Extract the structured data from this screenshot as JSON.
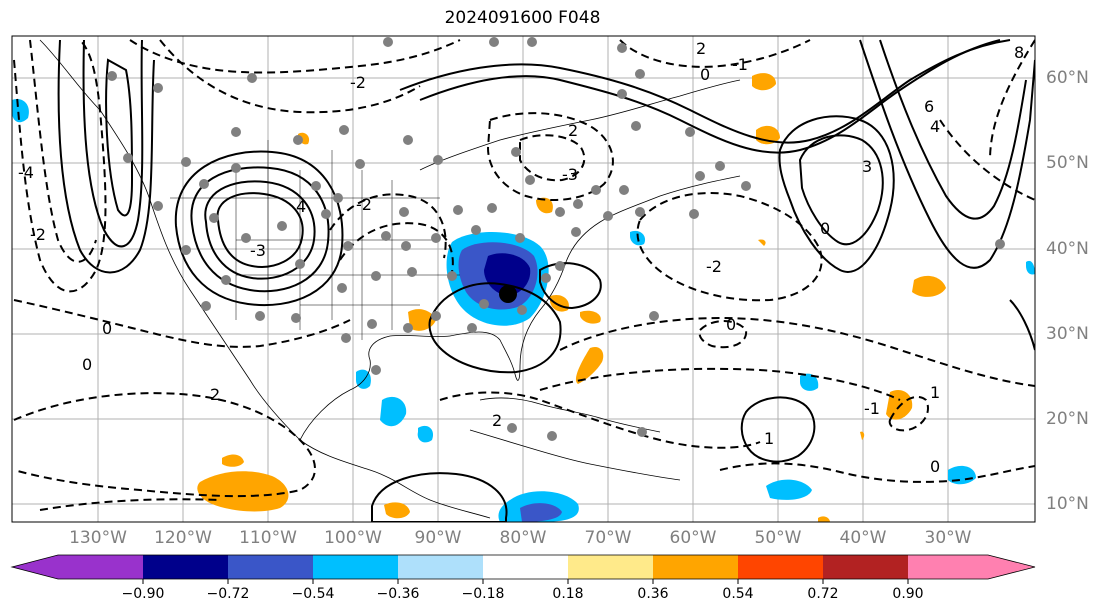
{
  "title": "2024091600 F048",
  "latitude_labels": [
    "60°N",
    "50°N",
    "40°N",
    "30°N",
    "20°N",
    "10°N"
  ],
  "longitude_labels": [
    "130°W",
    "120°W",
    "110°W",
    "100°W",
    "90°W",
    "80°W",
    "70°W",
    "60°W",
    "50°W",
    "40°W",
    "30°W"
  ],
  "contour_labels": [
    "2",
    "-1",
    "0",
    "8",
    "6",
    "4",
    "3",
    "-2",
    "-3",
    "-4",
    "4",
    "-2",
    "-3",
    "2",
    "0",
    "-2",
    "0",
    "1",
    "0",
    "1",
    "-1",
    "0",
    "2",
    "-2",
    "0",
    "2"
  ],
  "colorbar": {
    "ticks": [
      "−0.90",
      "−0.72",
      "−0.54",
      "−0.36",
      "−0.18",
      "0.18",
      "0.36",
      "0.54",
      "0.72",
      "0.90"
    ],
    "colors": {
      "below": "#9932cc",
      "bins": [
        "#00008b",
        "#3a56c8",
        "#00bfff",
        "#aee0fb",
        "#ffffff",
        "#ffea8a",
        "#ffa500",
        "#ff4500",
        "#b22222"
      ],
      "above": "#ff80b0"
    }
  },
  "colors": {
    "negative_fill_light": "#00bfff",
    "negative_fill_mid": "#3a56c8",
    "negative_fill_dark": "#00008b",
    "positive_fill": "#ffa500",
    "station_marker": "#808080",
    "grid": "#b0b0b0",
    "tick_label": "#808080"
  },
  "features": [
    "map-frame",
    "coastlines",
    "state-borders",
    "lat-lon-grid",
    "solid-contours",
    "dashed-contours",
    "shaded-anomalies",
    "station-dots",
    "storm-center-marker",
    "colorbar"
  ]
}
